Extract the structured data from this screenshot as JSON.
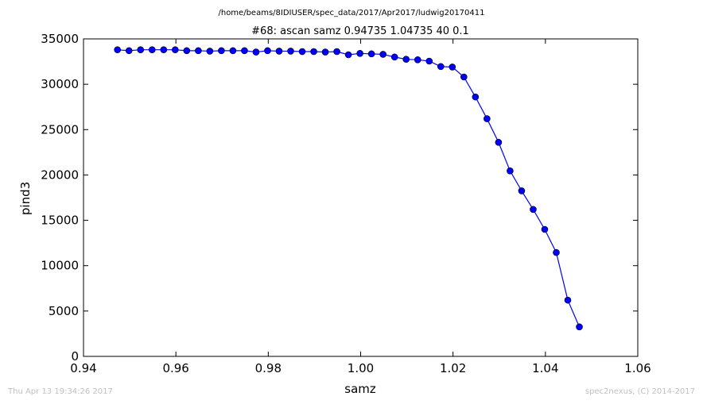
{
  "footer": {
    "timestamp": "Thu Apr 13 19:34:26 2017",
    "credit": "spec2nexus, (C) 2014-2017"
  },
  "chart_data": {
    "type": "line",
    "title": "#68: ascan  samz 0.94735 1.04735  40 0.1",
    "subtitle": "/home/beams/8IDIUSER/spec_data/2017/Apr2017/ludwig20170411",
    "xlabel": "samz",
    "ylabel": "pind3",
    "xlim": [
      0.94,
      1.06
    ],
    "ylim": [
      0,
      35000
    ],
    "xticks": [
      "0.94",
      "0.96",
      "0.98",
      "1.00",
      "1.02",
      "1.04",
      "1.06"
    ],
    "yticks": [
      "0",
      "5000",
      "10000",
      "15000",
      "20000",
      "25000",
      "30000",
      "35000"
    ],
    "grid": false,
    "line_color": "#0000ff",
    "marker": "circle",
    "x": [
      0.94735,
      0.94985,
      0.95235,
      0.95485,
      0.95735,
      0.95985,
      0.96235,
      0.96485,
      0.96735,
      0.96985,
      0.97235,
      0.97485,
      0.97735,
      0.97985,
      0.98235,
      0.98485,
      0.98735,
      0.98985,
      0.99235,
      0.99485,
      0.99735,
      0.99985,
      1.00235,
      1.00485,
      1.00735,
      1.00985,
      1.01235,
      1.01485,
      1.01735,
      1.01985,
      1.02235,
      1.02485,
      1.02735,
      1.02985,
      1.03235,
      1.03485,
      1.03735,
      1.03985,
      1.04235,
      1.04485,
      1.04735
    ],
    "y": [
      33800,
      33700,
      33800,
      33800,
      33800,
      33800,
      33700,
      33700,
      33650,
      33700,
      33700,
      33700,
      33550,
      33700,
      33650,
      33650,
      33600,
      33600,
      33550,
      33600,
      33250,
      33400,
      33350,
      33300,
      33000,
      32750,
      32700,
      32550,
      31950,
      31900,
      30800,
      28600,
      26200,
      23600,
      20450,
      18250,
      16200,
      14000,
      11450,
      6200,
      3250
    ]
  }
}
